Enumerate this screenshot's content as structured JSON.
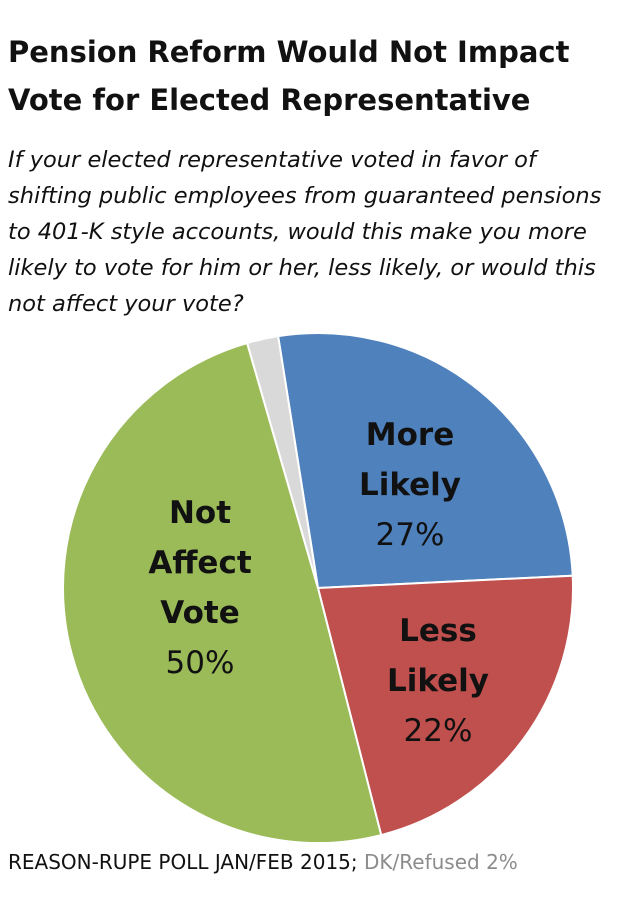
{
  "chart_data": {
    "type": "pie",
    "title": "Pension Reform Would Not Impact Vote for Elected Representative",
    "subtitle": "If your elected representative voted in favor of shifting public employees from guaranteed pensions to 401-K style accounts, would this make you more likely to vote for him or her, less likely, or would this not affect your vote?",
    "categories": [
      "More Likely",
      "Less Likely",
      "Not Affect Vote",
      "DK/Refused"
    ],
    "values": [
      27,
      22,
      50,
      2
    ],
    "value_labels": [
      "27%",
      "22%",
      "50%",
      "2%"
    ],
    "colors": [
      "#4f81bd",
      "#c0504d",
      "#9bbb59",
      "#d9d9d9"
    ],
    "source": "REASON-RUPE POLL JAN/FEB 2015;"
  }
}
